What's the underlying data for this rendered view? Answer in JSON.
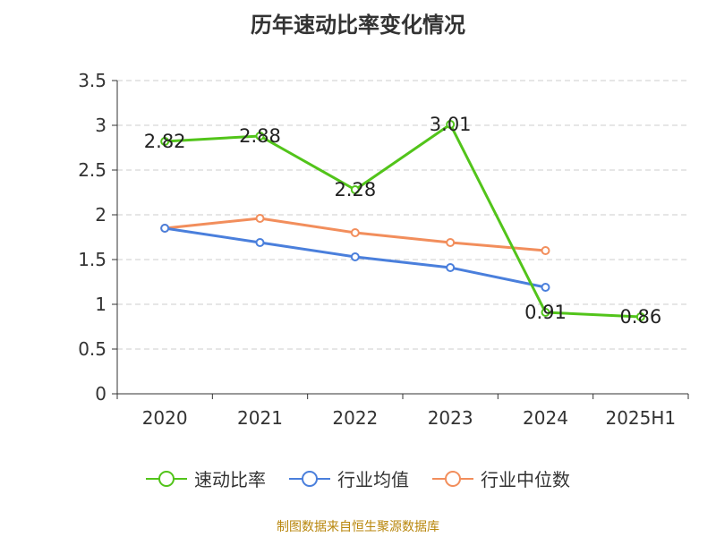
{
  "chart_data": {
    "type": "line",
    "title": "历年速动比率变化情况",
    "categories": [
      "2020",
      "2021",
      "2022",
      "2023",
      "2024",
      "2025H1"
    ],
    "ylim": [
      0,
      3.5
    ],
    "yticks": [
      "0",
      "0.5",
      "1",
      "1.5",
      "2",
      "2.5",
      "3",
      "3.5"
    ],
    "grid": true,
    "legend_position": "bottom",
    "series": [
      {
        "name": "速动比率",
        "color": "#52c41a",
        "values": [
          2.82,
          2.88,
          2.28,
          3.01,
          0.91,
          0.86
        ],
        "labels": [
          "2.82",
          "2.88",
          "2.28",
          "3.01",
          "0.91",
          "0.86"
        ]
      },
      {
        "name": "行业均值",
        "color": "#4a7fdc",
        "values": [
          1.85,
          1.69,
          1.53,
          1.41,
          1.19,
          null
        ]
      },
      {
        "name": "行业中位数",
        "color": "#f28e5c",
        "values": [
          1.85,
          1.96,
          1.8,
          1.69,
          1.6,
          null
        ]
      }
    ]
  },
  "source_note": "制图数据来自恒生聚源数据库"
}
